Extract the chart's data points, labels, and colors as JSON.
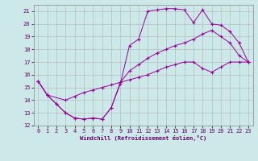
{
  "background_color": "#cce8e8",
  "grid_color": "#aaaaaa",
  "line_color": "#990099",
  "xlabel": "Windchill (Refroidissement éolien,°C)",
  "ylabel_ticks": [
    12,
    13,
    14,
    15,
    16,
    17,
    18,
    19,
    20,
    21
  ],
  "xlim": [
    -0.5,
    23.5
  ],
  "ylim": [
    12,
    21.5
  ],
  "xticks": [
    0,
    1,
    2,
    3,
    4,
    5,
    6,
    7,
    8,
    9,
    10,
    11,
    12,
    13,
    14,
    15,
    16,
    17,
    18,
    19,
    20,
    21,
    22,
    23
  ],
  "line1_x": [
    0,
    1,
    2,
    3,
    4,
    5,
    6,
    7,
    8,
    9,
    10,
    11,
    12,
    13,
    14,
    15,
    16,
    17,
    18,
    19,
    20,
    21,
    22,
    23
  ],
  "line1_y": [
    15.5,
    14.4,
    13.7,
    13.0,
    12.6,
    12.5,
    12.6,
    12.5,
    13.4,
    15.3,
    18.3,
    18.8,
    21.0,
    21.1,
    21.2,
    21.2,
    21.1,
    20.1,
    21.1,
    20.0,
    19.9,
    19.4,
    18.5,
    17.0
  ],
  "line2_x": [
    0,
    1,
    3,
    4,
    5,
    6,
    7,
    8,
    9,
    10,
    11,
    12,
    13,
    14,
    15,
    16,
    17,
    18,
    19,
    20,
    21,
    22,
    23
  ],
  "line2_y": [
    15.5,
    14.4,
    14.0,
    14.3,
    14.6,
    14.8,
    15.0,
    15.2,
    15.4,
    15.6,
    15.8,
    16.0,
    16.3,
    16.6,
    16.8,
    17.0,
    17.0,
    16.5,
    16.2,
    16.6,
    17.0,
    17.0,
    17.0
  ],
  "line3_x": [
    0,
    1,
    2,
    3,
    4,
    5,
    6,
    7,
    8,
    9,
    10,
    11,
    12,
    13,
    14,
    15,
    16,
    17,
    18,
    19,
    20,
    21,
    22,
    23
  ],
  "line3_y": [
    15.5,
    14.4,
    13.7,
    13.0,
    12.6,
    12.5,
    12.6,
    12.5,
    13.4,
    15.4,
    16.3,
    16.8,
    17.3,
    17.7,
    18.0,
    18.3,
    18.5,
    18.8,
    19.2,
    19.5,
    19.0,
    18.5,
    17.5,
    17.0
  ]
}
